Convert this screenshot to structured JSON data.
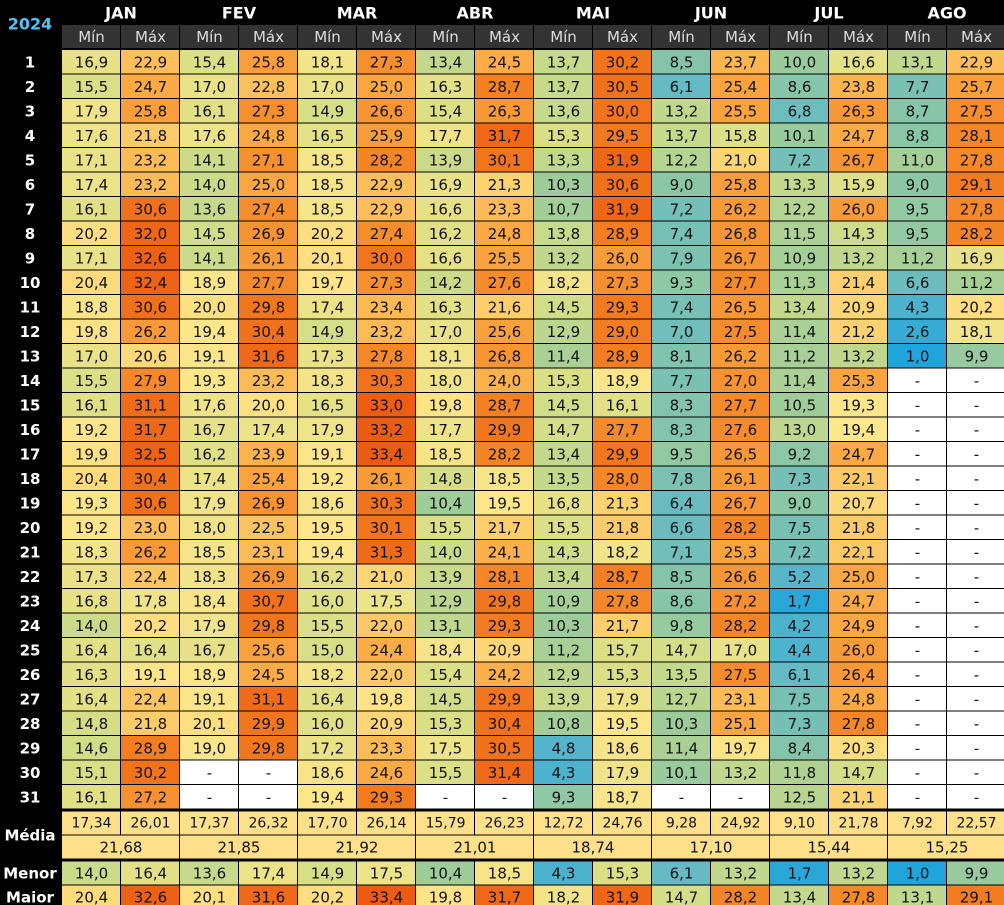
{
  "chart_data": {
    "type": "heatmap",
    "year": "2024",
    "months": [
      "JAN",
      "FEV",
      "MAR",
      "ABR",
      "MAI",
      "JUN",
      "JUL",
      "AGO"
    ],
    "sub_headers": [
      "Mín",
      "Máx"
    ],
    "days": [
      "1",
      "2",
      "3",
      "4",
      "5",
      "6",
      "7",
      "8",
      "9",
      "10",
      "11",
      "12",
      "13",
      "14",
      "15",
      "16",
      "17",
      "18",
      "19",
      "20",
      "21",
      "22",
      "23",
      "24",
      "25",
      "26",
      "27",
      "28",
      "29",
      "30",
      "31"
    ],
    "missing_label": "-",
    "cells": [
      [
        "16,9",
        "22,9",
        "15,4",
        "25,8",
        "18,1",
        "27,3",
        "13,4",
        "24,5",
        "13,7",
        "30,2",
        "8,5",
        "23,7",
        "10,0",
        "16,6",
        "13,1",
        "22,9"
      ],
      [
        "15,5",
        "24,7",
        "17,0",
        "22,8",
        "17,0",
        "25,0",
        "16,3",
        "28,7",
        "13,7",
        "30,5",
        "6,1",
        "25,4",
        "8,6",
        "23,8",
        "7,7",
        "25,7"
      ],
      [
        "17,9",
        "25,8",
        "16,1",
        "27,3",
        "14,9",
        "26,6",
        "15,4",
        "26,3",
        "13,6",
        "30,0",
        "13,2",
        "25,5",
        "6,8",
        "26,3",
        "8,7",
        "27,5"
      ],
      [
        "17,6",
        "21,8",
        "17,6",
        "24,8",
        "16,5",
        "25,9",
        "17,7",
        "31,7",
        "15,3",
        "29,5",
        "13,7",
        "15,8",
        "10,1",
        "24,7",
        "8,8",
        "28,1"
      ],
      [
        "17,1",
        "23,2",
        "14,1",
        "27,1",
        "18,5",
        "28,2",
        "13,9",
        "30,1",
        "13,3",
        "31,9",
        "12,2",
        "21,0",
        "7,2",
        "26,7",
        "11,0",
        "27,8"
      ],
      [
        "17,4",
        "23,2",
        "14,0",
        "25,0",
        "18,5",
        "22,9",
        "16,9",
        "21,3",
        "10,3",
        "30,6",
        "9,0",
        "25,8",
        "13,3",
        "15,9",
        "9,0",
        "29,1"
      ],
      [
        "16,1",
        "30,6",
        "13,6",
        "27,4",
        "18,5",
        "22,9",
        "16,6",
        "23,3",
        "10,7",
        "31,9",
        "7,2",
        "26,2",
        "12,2",
        "26,0",
        "9,5",
        "27,8"
      ],
      [
        "20,2",
        "32,0",
        "14,5",
        "26,9",
        "20,2",
        "27,4",
        "16,2",
        "24,8",
        "13,8",
        "28,9",
        "7,4",
        "26,8",
        "11,5",
        "14,3",
        "9,5",
        "28,2"
      ],
      [
        "17,1",
        "32,6",
        "14,1",
        "26,1",
        "20,1",
        "30,0",
        "16,6",
        "25,5",
        "13,2",
        "26,0",
        "7,9",
        "26,7",
        "10,9",
        "13,2",
        "11,2",
        "16,9"
      ],
      [
        "20,4",
        "32,4",
        "18,9",
        "27,7",
        "19,7",
        "27,3",
        "14,2",
        "27,6",
        "18,2",
        "27,3",
        "9,3",
        "27,7",
        "11,3",
        "21,4",
        "6,6",
        "11,2"
      ],
      [
        "18,8",
        "30,6",
        "20,0",
        "29,8",
        "17,4",
        "23,4",
        "16,3",
        "21,6",
        "14,5",
        "29,3",
        "7,4",
        "26,5",
        "13,4",
        "20,9",
        "4,3",
        "20,2"
      ],
      [
        "19,8",
        "26,2",
        "19,4",
        "30,4",
        "14,9",
        "23,2",
        "17,0",
        "25,6",
        "12,9",
        "29,0",
        "7,0",
        "27,5",
        "11,4",
        "21,2",
        "2,6",
        "18,1"
      ],
      [
        "17,0",
        "20,6",
        "19,1",
        "31,6",
        "17,3",
        "27,8",
        "18,1",
        "26,8",
        "11,4",
        "28,9",
        "8,1",
        "26,2",
        "11,2",
        "13,2",
        "1,0",
        "9,9"
      ],
      [
        "15,5",
        "27,9",
        "19,3",
        "23,2",
        "18,3",
        "30,3",
        "18,0",
        "24,0",
        "15,3",
        "18,9",
        "7,7",
        "27,0",
        "11,4",
        "25,3",
        "-",
        "-"
      ],
      [
        "16,1",
        "31,1",
        "17,6",
        "20,0",
        "16,5",
        "33,0",
        "19,8",
        "28,7",
        "14,5",
        "16,1",
        "8,3",
        "27,7",
        "10,5",
        "19,3",
        "-",
        "-"
      ],
      [
        "19,2",
        "31,7",
        "16,7",
        "17,4",
        "17,9",
        "33,2",
        "17,7",
        "29,9",
        "14,7",
        "27,7",
        "8,3",
        "27,6",
        "13,0",
        "19,4",
        "-",
        "-"
      ],
      [
        "19,9",
        "32,5",
        "16,2",
        "23,9",
        "19,1",
        "33,4",
        "18,5",
        "28,2",
        "13,4",
        "29,9",
        "9,5",
        "26,5",
        "9,2",
        "24,7",
        "-",
        "-"
      ],
      [
        "20,4",
        "30,4",
        "17,4",
        "25,4",
        "19,2",
        "26,1",
        "14,8",
        "18,5",
        "13,5",
        "28,0",
        "7,8",
        "26,1",
        "7,3",
        "22,1",
        "-",
        "-"
      ],
      [
        "19,3",
        "30,6",
        "17,9",
        "26,9",
        "18,6",
        "30,3",
        "10,4",
        "19,5",
        "16,8",
        "21,3",
        "6,4",
        "26,7",
        "9,0",
        "20,7",
        "-",
        "-"
      ],
      [
        "19,2",
        "23,0",
        "18,0",
        "22,5",
        "19,5",
        "30,1",
        "15,5",
        "21,7",
        "15,5",
        "21,8",
        "6,6",
        "28,2",
        "7,5",
        "21,8",
        "-",
        "-"
      ],
      [
        "18,3",
        "26,2",
        "18,5",
        "23,1",
        "19,4",
        "31,3",
        "14,0",
        "24,1",
        "14,3",
        "18,2",
        "7,1",
        "25,3",
        "7,2",
        "22,1",
        "-",
        "-"
      ],
      [
        "17,3",
        "22,4",
        "18,3",
        "26,9",
        "16,2",
        "21,0",
        "13,9",
        "28,1",
        "13,4",
        "28,7",
        "8,5",
        "26,6",
        "5,2",
        "25,0",
        "-",
        "-"
      ],
      [
        "16,8",
        "17,8",
        "18,4",
        "30,7",
        "16,0",
        "17,5",
        "12,9",
        "29,8",
        "10,9",
        "27,8",
        "8,6",
        "27,2",
        "1,7",
        "24,7",
        "-",
        "-"
      ],
      [
        "14,0",
        "20,2",
        "17,9",
        "29,8",
        "15,5",
        "22,0",
        "13,1",
        "29,3",
        "10,3",
        "21,7",
        "9,8",
        "28,2",
        "4,2",
        "24,9",
        "-",
        "-"
      ],
      [
        "16,4",
        "16,4",
        "16,7",
        "25,6",
        "15,0",
        "24,4",
        "18,4",
        "20,9",
        "11,2",
        "15,7",
        "14,7",
        "17,0",
        "4,4",
        "26,0",
        "-",
        "-"
      ],
      [
        "16,3",
        "19,1",
        "18,9",
        "24,5",
        "18,2",
        "22,0",
        "15,4",
        "24,2",
        "12,9",
        "15,3",
        "13,5",
        "27,5",
        "6,1",
        "26,4",
        "-",
        "-"
      ],
      [
        "16,4",
        "22,4",
        "19,1",
        "31,1",
        "16,4",
        "19,8",
        "14,5",
        "29,9",
        "13,9",
        "17,9",
        "12,7",
        "23,1",
        "7,5",
        "24,8",
        "-",
        "-"
      ],
      [
        "14,8",
        "21,8",
        "20,1",
        "29,9",
        "16,0",
        "20,9",
        "15,3",
        "30,4",
        "10,8",
        "19,5",
        "10,3",
        "25,1",
        "7,3",
        "27,8",
        "-",
        "-"
      ],
      [
        "14,6",
        "28,9",
        "19,0",
        "29,8",
        "17,2",
        "23,3",
        "17,5",
        "30,5",
        "4,8",
        "18,6",
        "11,4",
        "19,7",
        "8,4",
        "20,3",
        "-",
        "-"
      ],
      [
        "15,1",
        "30,2",
        "-",
        "-",
        "18,6",
        "24,6",
        "15,5",
        "31,4",
        "4,3",
        "17,9",
        "10,1",
        "13,2",
        "11,8",
        "14,7",
        "-",
        "-"
      ],
      [
        "16,1",
        "27,2",
        "-",
        "-",
        "19,4",
        "29,3",
        "-",
        "-",
        "9,3",
        "18,7",
        "-",
        "-",
        "12,5",
        "21,1",
        "-",
        "-"
      ]
    ],
    "summary": {
      "media_label": "Média",
      "media_minmax": [
        "17,34",
        "26,01",
        "17,37",
        "26,32",
        "17,70",
        "26,14",
        "15,79",
        "26,23",
        "12,72",
        "24,76",
        "9,28",
        "24,92",
        "9,10",
        "21,78",
        "7,92",
        "22,57"
      ],
      "media_month": [
        "21,68",
        "21,85",
        "21,92",
        "21,01",
        "18,74",
        "17,10",
        "15,44",
        "15,25"
      ],
      "menor_label": "Menor",
      "menor": [
        "14,0",
        "16,4",
        "13,6",
        "17,4",
        "14,9",
        "17,5",
        "10,4",
        "18,5",
        "4,3",
        "15,3",
        "6,1",
        "13,2",
        "1,7",
        "13,2",
        "1,0",
        "9,9"
      ],
      "maior_label": "Maior",
      "maior": [
        "20,4",
        "32,6",
        "20,1",
        "31,6",
        "20,2",
        "33,4",
        "19,8",
        "31,7",
        "18,2",
        "31,9",
        "14,7",
        "28,2",
        "13,4",
        "27,8",
        "13,1",
        "29,1"
      ]
    }
  },
  "colors": {
    "background": "#000000",
    "header_text": "#ffffff",
    "year_text": "#4fc3f7",
    "subheader_bg": "#333333",
    "subheader_text": "#dddddd",
    "label_bg": "#222222",
    "empty_cell": "#ffffff",
    "summary_fill": "#ffe08a",
    "scale": [
      "#20a4dc",
      "#5fb8c8",
      "#9ccc9a",
      "#d6de86",
      "#ffe68a",
      "#fcb04a",
      "#f37f22",
      "#ec5b12"
    ]
  }
}
